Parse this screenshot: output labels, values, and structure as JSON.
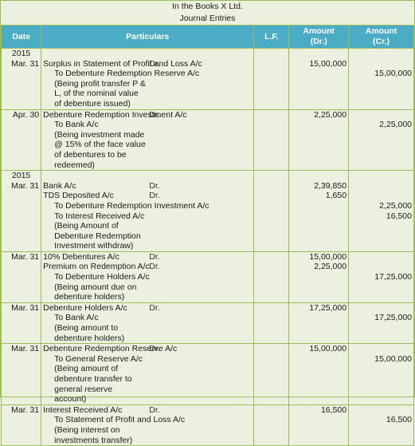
{
  "header": {
    "company": "In the Books X Ltd.",
    "book": "Journal Entries"
  },
  "columns": {
    "date": "Date",
    "particulars": "Particulars",
    "lf": "L.F.",
    "amount_dr_1": "Amount",
    "amount_dr_2": "(Dr.)",
    "amount_cr_1": "Amount",
    "amount_cr_2": "(Cr.)"
  },
  "entries": [
    {
      "year": "2015",
      "date": "Mar. 31",
      "lines": [
        {
          "text": "Surplus in Statement of Profit and Loss A/c",
          "drcr": "Dr.",
          "dr": "15,00,000",
          "cr": "",
          "indent": false
        },
        {
          "text": "To Debenture Redemption Reserve A/c",
          "drcr": "",
          "dr": "",
          "cr": "15,00,000",
          "indent": true
        }
      ],
      "narration": "(Being profit transfer P & L, of the nominal value of debenture issued)"
    },
    {
      "year": "",
      "date": "Apr. 30",
      "lines": [
        {
          "text": "Debenture Redemption Investment A/c",
          "drcr": "Dr.",
          "dr": "2,25,000",
          "cr": "",
          "indent": false
        },
        {
          "text": "To Bank  A/c",
          "drcr": "",
          "dr": "",
          "cr": "2,25,000",
          "indent": true
        }
      ],
      "narration": "(Being investment made @ 15% of the face value of debentures to be redeemed)"
    },
    {
      "year": "2015",
      "date": "Mar. 31",
      "lines": [
        {
          "text": "Bank A/c",
          "drcr": "Dr.",
          "dr": "2,39,850",
          "cr": "",
          "indent": false
        },
        {
          "text": "TDS Deposited A/c",
          "drcr": "Dr.",
          "dr": "1,650",
          "cr": "",
          "indent": false
        },
        {
          "text": "To Debenture Redemption Investment A/c",
          "drcr": "",
          "dr": "",
          "cr": "2,25,000",
          "indent": true
        },
        {
          "text": "To Interest Received A/c",
          "drcr": "",
          "dr": "",
          "cr": "16,500",
          "indent": true
        }
      ],
      "narration": "(Being Amount of Debenture Redemption Investment withdraw)"
    },
    {
      "year": "",
      "date": "Mar. 31",
      "lines": [
        {
          "text": "10% Debentures A/c",
          "drcr": "Dr.",
          "dr": "15,00,000",
          "cr": "",
          "indent": false
        },
        {
          "text": "Premium on Redemption A/c",
          "drcr": "Dr.",
          "dr": "2,25,000",
          "cr": "",
          "indent": false
        },
        {
          "text": "To Debenture Holders A/c",
          "drcr": "",
          "dr": "",
          "cr": "17,25,000",
          "indent": true
        }
      ],
      "narration": "(Being amount due on debenture holders)"
    },
    {
      "year": "",
      "date": "Mar. 31",
      "lines": [
        {
          "text": "Debenture Holders A/c",
          "drcr": "Dr.",
          "dr": "17,25,000",
          "cr": "",
          "indent": false
        },
        {
          "text": "To Bank A/c",
          "drcr": "",
          "dr": "",
          "cr": "17,25,000",
          "indent": true
        }
      ],
      "narration": "(Being amount to debenture holders)"
    },
    {
      "year": "",
      "date": "Mar. 31",
      "lines": [
        {
          "text": "Debenture Redemption Reserve A/c",
          "drcr": "Dr.",
          "dr": "15,00,000",
          "cr": "",
          "indent": false
        },
        {
          "text": "To General Reserve A/c",
          "drcr": "",
          "dr": "",
          "cr": "15,00,000",
          "indent": true
        }
      ],
      "narration": "(Being amount of debenture transfer to general reserve account)"
    },
    {
      "year": "",
      "date": "Mar. 31",
      "lines": [
        {
          "text": "Interest Received A/c",
          "drcr": "Dr.",
          "dr": "16,500",
          "cr": "",
          "indent": false
        },
        {
          "text": "To Statement of Profit and Loss A/c",
          "drcr": "",
          "dr": "",
          "cr": "16,500",
          "indent": true
        }
      ],
      "narration": "(Being interest on investments transfer)"
    }
  ]
}
